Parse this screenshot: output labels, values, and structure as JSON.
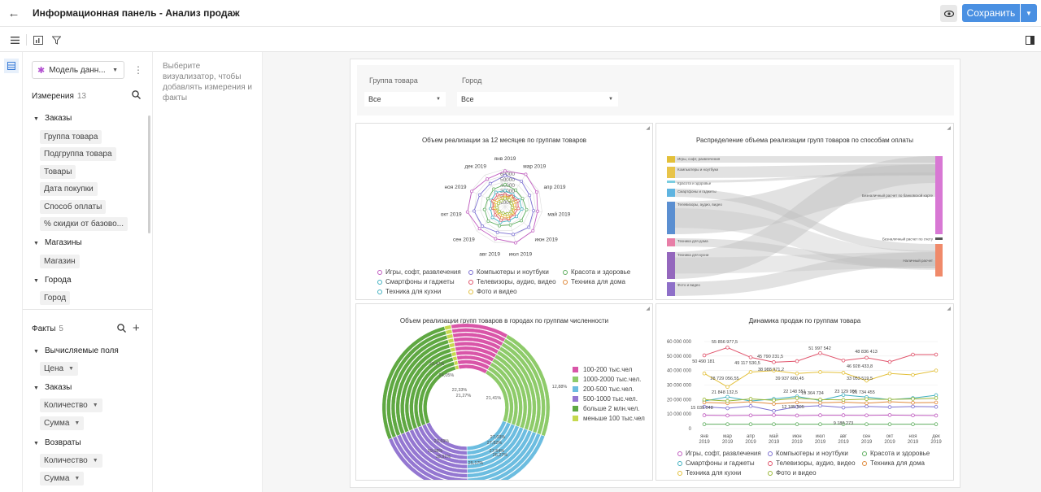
{
  "header": {
    "title": "Информационная панель - Анализ продаж",
    "save_label": "Сохранить"
  },
  "sidebar": {
    "model_label": "Модель данн...",
    "dimensions_title": "Измерения",
    "dimensions_count": "13",
    "facts_title": "Факты",
    "facts_count": "5",
    "groups": {
      "orders": "Заказы",
      "orders_items": [
        "Группа товара",
        "Подгруппа товара",
        "Товары",
        "Дата покупки",
        "Способ оплаты",
        "% скидки от базово..."
      ],
      "shops": "Магазины",
      "shops_items": [
        "Магазин"
      ],
      "cities": "Города",
      "cities_items": [
        "Город"
      ]
    },
    "facts": {
      "computed": "Вычисляемые поля",
      "computed_items": [
        "Цена"
      ],
      "orders": "Заказы",
      "orders_items": [
        "Количество",
        "Сумма"
      ],
      "returns": "Возвраты",
      "returns_items": [
        "Количество",
        "Сумма"
      ]
    }
  },
  "hint": "Выберите визуализатор, чтобы добавлять измерения и факты",
  "filters": {
    "group_label": "Группа товара",
    "group_value": "Все",
    "city_label": "Город",
    "city_value": "Все"
  },
  "colors": {
    "accent": "#4a90e2"
  },
  "chart_data": [
    {
      "type": "radar",
      "title": "Объем реализации за 12 месяцев по группам товаров",
      "axes": [
        "янв 2019",
        "мар 2019",
        "апр 2019",
        "май 2019",
        "июн 2019",
        "июл 2019",
        "авг 2019",
        "сен 2019",
        "окт 2019",
        "ноя 2019",
        "дек 2019"
      ],
      "ticks": [
        "60000",
        "50000",
        "40000",
        "30000",
        "20000",
        "10000"
      ],
      "legend": [
        "Игры, софт, развлечения",
        "Компьютеры и ноутбуки",
        "Красота и здоровье",
        "Смартфоны и гаджеты",
        "Телевизоры, аудио, видео",
        "Техника для дома",
        "Техника для кухни",
        "Фото и видео"
      ]
    },
    {
      "type": "sankey",
      "title": "Распределение объема реализации групп товаров по способам оплаты",
      "sources": [
        "Игры, софт, развлечения",
        "Компьютеры и ноутбуки",
        "Красота и здоровье",
        "Смартфоны и гаджеты",
        "Телевизоры, аудио, видео",
        "Техника для дома",
        "Техника для кухни",
        "Фото и видео"
      ],
      "targets": [
        "Безналичный расчет по банковской карте",
        "Безналичный расчет по счету",
        "Наличный расчет"
      ]
    },
    {
      "type": "sunburst",
      "title": "Объем реализации групп товаров в городах по группам численности",
      "legend": [
        "100-200 тыс.чел",
        "1000-2000 тыс.чел.",
        "200-500 тыс.чел.",
        "500-1000 тыс.чел.",
        "больше 2 млн.чел.",
        "меньше 100 тыс.чел"
      ],
      "labels": [
        "23,47%",
        "24,05%",
        "22,33%",
        "21,27%",
        "12,88%",
        "21,41%",
        "27,03%",
        "27,82%",
        "27,54%",
        "26,27%",
        "25,17%",
        "18,91%",
        "23,69%",
        "19,08%"
      ]
    },
    {
      "type": "line",
      "title": "Динамика продаж по группам товара",
      "categories": [
        "янв 2019",
        "мар 2019",
        "апр 2019",
        "май 2019",
        "июн 2019",
        "июл 2019",
        "авг 2019",
        "сен 2019",
        "окт 2019",
        "ноя 2019",
        "дек 2019"
      ],
      "y_ticks": [
        "60 000 000",
        "50 000 000",
        "40 000 000",
        "30 000 000",
        "20 000 000",
        "10 000 000",
        "0"
      ],
      "ylim": [
        0,
        60000000
      ],
      "data_labels": [
        "55 856 977,5",
        "50 490 181",
        "49 117 530,5",
        "45 790 231,5",
        "51 997 542",
        "48 836 413",
        "38 988 971,2",
        "46 928 433,8",
        "28 729 056,55",
        "39 937 600,45",
        "33 053 519,5",
        "21 848 132,5",
        "22 148 551",
        "23 129 966",
        "21 734 455",
        "19 364 734",
        "15 039 048",
        "12 185 505",
        "9 189 273"
      ],
      "series": [
        {
          "name": "Игры, софт, развлечения",
          "color": "#c05bc0",
          "values": [
            9200000,
            9000000,
            9100000,
            9300000,
            9000000,
            9200000,
            9189273,
            9100000,
            9300000,
            9100000,
            9000000
          ]
        },
        {
          "name": "Компьютеры и ноутбуки",
          "color": "#7b6fd1",
          "values": [
            15039048,
            14000000,
            15500000,
            12185505,
            15000000,
            15800000,
            14500000,
            15300000,
            14800000,
            15200000,
            15000000
          ]
        },
        {
          "name": "Красота и здоровье",
          "color": "#5fae5f",
          "values": [
            3000000,
            3000000,
            3000000,
            3000000,
            3000000,
            3000000,
            3000000,
            3000000,
            3000000,
            3000000,
            3000000
          ]
        },
        {
          "name": "Смартфоны и гаджеты",
          "color": "#41b0c0",
          "values": [
            19000000,
            21848132.5,
            19000000,
            20500000,
            22148551,
            19364734,
            23129966,
            21734455,
            20000000,
            21000000,
            23000000
          ]
        },
        {
          "name": "Телевизоры, аудио, видео",
          "color": "#e0536b",
          "values": [
            50490181,
            55856977.5,
            49117530.5,
            45790231.5,
            46500000,
            51997542,
            46928433.8,
            48836413,
            46000000,
            51000000,
            51000000
          ]
        },
        {
          "name": "Техника для дома",
          "color": "#e08a3c",
          "values": [
            18000000,
            17500000,
            18500000,
            17000000,
            18000000,
            17800000,
            18200000,
            17500000,
            18500000,
            17800000,
            18000000
          ]
        },
        {
          "name": "Техника для кухни",
          "color": "#e3c03a",
          "values": [
            38000000,
            28729056.55,
            38988971.2,
            39937600.45,
            38000000,
            39000000,
            38500000,
            33053519.5,
            38000000,
            37000000,
            40000000
          ]
        },
        {
          "name": "Фото и видео",
          "color": "#9ab837",
          "values": [
            20000000,
            19000000,
            20500000,
            19500000,
            21000000,
            20000000,
            19800000,
            20300000,
            20100000,
            20500000,
            21000000
          ]
        }
      ]
    }
  ]
}
